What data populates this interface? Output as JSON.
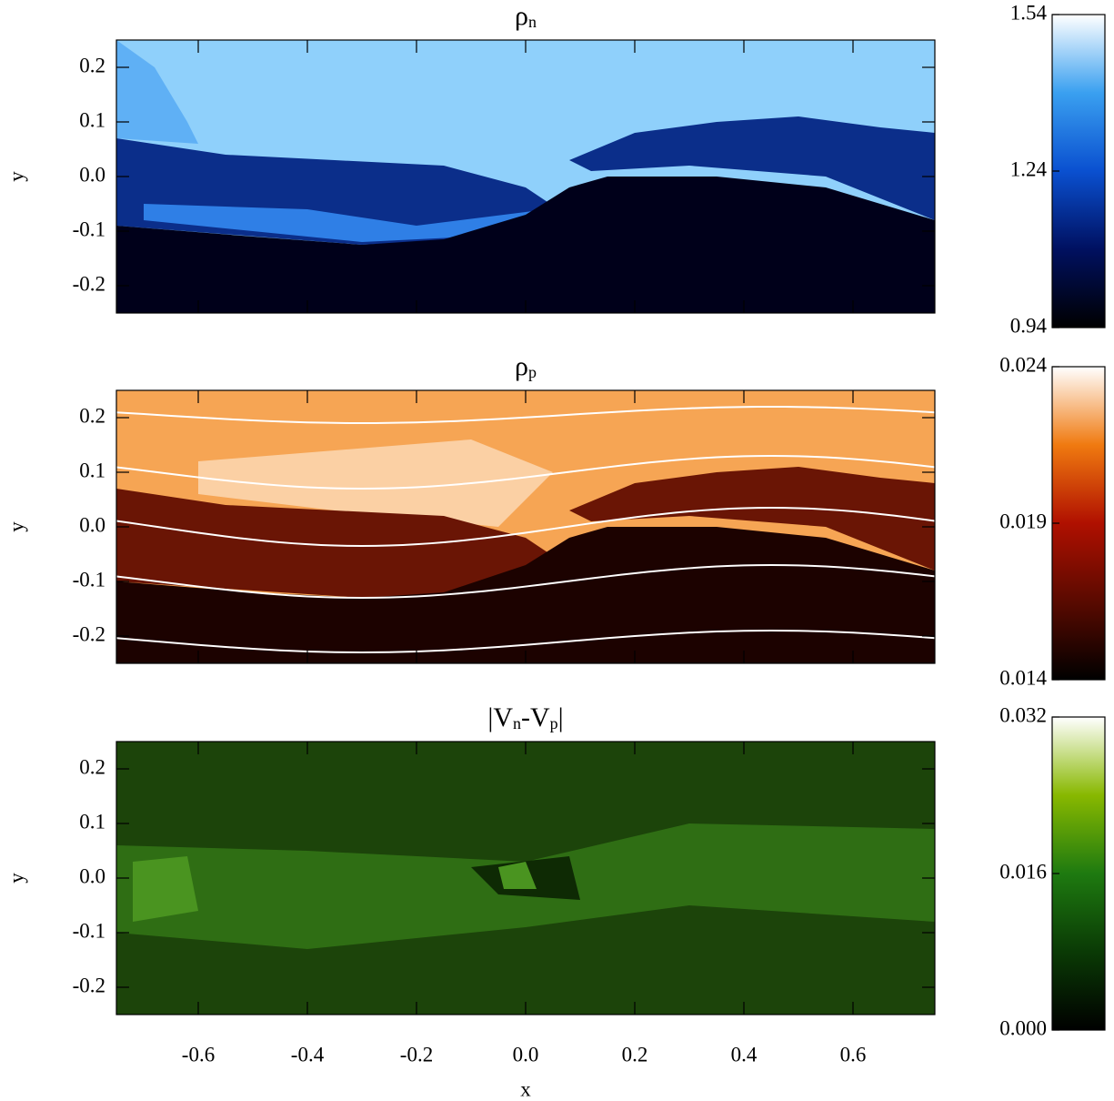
{
  "chart_data": [
    {
      "type": "heatmap",
      "title": [
        {
          "text": "ρ"
        },
        {
          "text": "n",
          "sub": true
        }
      ],
      "ylabel": "y",
      "xlim": [
        -0.75,
        0.75
      ],
      "ylim": [
        -0.25,
        0.25
      ],
      "xticks": [
        -0.6,
        -0.4,
        -0.2,
        {
          "value": 0,
          "label": "0.0"
        },
        0.2,
        0.4,
        0.6
      ],
      "yticks": [
        -0.2,
        -0.1,
        {
          "value": 0,
          "label": "0.0"
        },
        0.1,
        0.2
      ],
      "xtick_labels": false,
      "colorbar": {
        "lim": [
          0.94,
          1.54
        ],
        "ticks": [
          0.94,
          1.24,
          1.54
        ],
        "colors": [
          "#000000",
          "#001060",
          "#0a50d0",
          "#3aa0f0",
          "#ffffff"
        ]
      }
    },
    {
      "type": "heatmap",
      "title": [
        {
          "text": "ρ"
        },
        {
          "text": "p",
          "sub": true
        }
      ],
      "ylabel": "y",
      "xlim": [
        -0.75,
        0.75
      ],
      "ylim": [
        -0.25,
        0.25
      ],
      "xticks": [
        -0.6,
        -0.4,
        -0.2,
        {
          "value": 0,
          "label": "0.0"
        },
        0.2,
        0.4,
        0.6
      ],
      "yticks": [
        -0.2,
        -0.1,
        {
          "value": 0,
          "label": "0.0"
        },
        0.1,
        0.2
      ],
      "xtick_labels": false,
      "colorbar": {
        "lim": [
          0.014,
          0.024
        ],
        "ticks": [
          0.014,
          0.019,
          0.024
        ],
        "colors": [
          "#000000",
          "#5a0a00",
          "#b01000",
          "#f07a10",
          "#ffffff"
        ]
      }
    },
    {
      "type": "heatmap",
      "title": [
        {
          "text": "|V"
        },
        {
          "text": "n",
          "sub": true
        },
        {
          "text": "-V"
        },
        {
          "text": "p",
          "sub": true
        },
        {
          "text": "|"
        }
      ],
      "ylabel": "y",
      "xlabel": "x",
      "xlim": [
        -0.75,
        0.75
      ],
      "ylim": [
        -0.25,
        0.25
      ],
      "xticks": [
        -0.6,
        -0.4,
        -0.2,
        {
          "value": 0,
          "label": "0.0"
        },
        0.2,
        0.4,
        0.6
      ],
      "yticks": [
        -0.2,
        -0.1,
        {
          "value": 0,
          "label": "0.0"
        },
        0.1,
        0.2
      ],
      "xtick_labels": true,
      "colorbar": {
        "lim": [
          0,
          0.032
        ],
        "ticks": [
          {
            "value": 0,
            "label": "0.000"
          },
          0.016,
          0.032
        ],
        "colors": [
          "#000000",
          "#0a3a05",
          "#1e7a10",
          "#88b800",
          "#ffffff"
        ]
      }
    }
  ]
}
